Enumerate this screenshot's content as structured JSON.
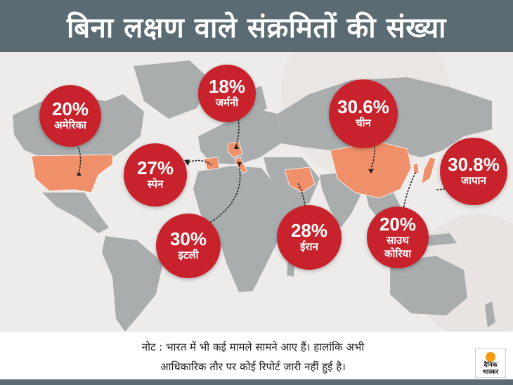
{
  "title": "बिना लक्षण वाले संक्रमितों की संख्या",
  "colors": {
    "title_bar": "#5a6b73",
    "bubble": "#c8232c",
    "highlight_country": "#f0906a",
    "land": "#a9adae",
    "logo_sun": "#f39c12"
  },
  "countries": [
    {
      "id": "usa",
      "pct": "20%",
      "name": "अमेरिका"
    },
    {
      "id": "germany",
      "pct": "18%",
      "name": "जर्मनी"
    },
    {
      "id": "spain",
      "pct": "27%",
      "name": "स्पेन"
    },
    {
      "id": "italy",
      "pct": "30%",
      "name": "इटली"
    },
    {
      "id": "iran",
      "pct": "28%",
      "name": "ईरान"
    },
    {
      "id": "china",
      "pct": "30.6%",
      "name": "चीन"
    },
    {
      "id": "japan",
      "pct": "30.8%",
      "name": "जापान"
    },
    {
      "id": "south-korea",
      "pct": "20%",
      "name_line1": "साउथ",
      "name_line2": "कोरिया"
    }
  ],
  "note": {
    "line1": "नोट : भारत में भी कई मामले सामने आए हैं। हालांकि अभी",
    "line2": "आधिकारिक तौर पर कोई रिपोर्ट जारी नहीं हुई है।"
  },
  "logo": {
    "line1": "दैनिक",
    "line2": "भास्कर"
  }
}
